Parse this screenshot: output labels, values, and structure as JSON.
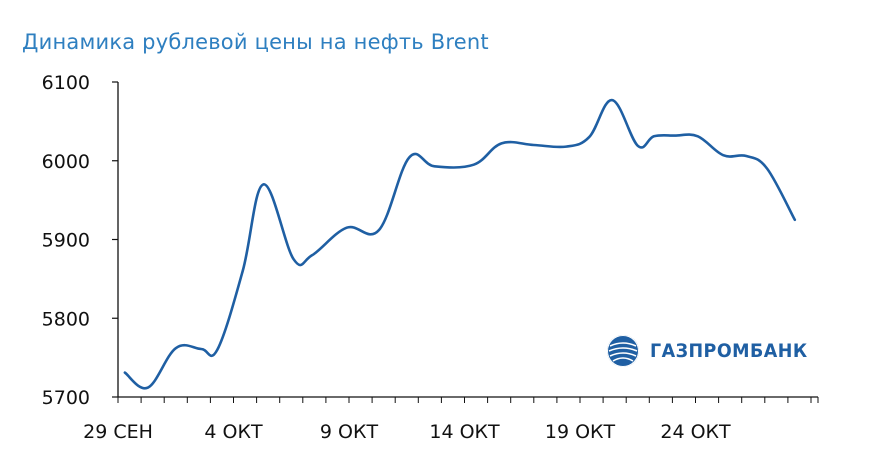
{
  "chart_data": {
    "type": "line",
    "title": "Динамика рублевой цены на нефть Brent",
    "xlabel": "",
    "ylabel": "",
    "ylim": [
      5700,
      6100
    ],
    "yticks": [
      5700,
      5800,
      5900,
      6000,
      6100
    ],
    "xticks": [
      {
        "index": 0,
        "label": "29 СЕН"
      },
      {
        "index": 5,
        "label": "4 ОКТ"
      },
      {
        "index": 10,
        "label": "9 ОКТ"
      },
      {
        "index": 15,
        "label": "14 ОКТ"
      },
      {
        "index": 20,
        "label": "19 ОКТ"
      },
      {
        "index": 25,
        "label": "24 ОКТ"
      }
    ],
    "x_count": 30,
    "grid": false,
    "color": "#1f5fa3",
    "series": [
      {
        "x": [
          0.3,
          1.3,
          2.5,
          3.6,
          4.3,
          5.4,
          6.3,
          7.6,
          8.4,
          9.9,
          11.3,
          12.6,
          13.7,
          15.4,
          16.6,
          18.0,
          19.4,
          20.4,
          21.4,
          22.5,
          23.2,
          24.1,
          25.1,
          26.2,
          27.2,
          28.1,
          29.3
        ],
        "values": [
          5731,
          5712,
          5762,
          5761,
          5760,
          5860,
          5970,
          5875,
          5880,
          5915,
          5912,
          6004,
          5993,
          5995,
          6022,
          6020,
          6018,
          6030,
          6077,
          6019,
          6031,
          6032,
          6031,
          6007,
          6006,
          5990,
          5925
        ]
      }
    ]
  },
  "logo": {
    "text": "ГАЗПРОМБАНК",
    "icon": "gazprombank-globe-icon"
  }
}
